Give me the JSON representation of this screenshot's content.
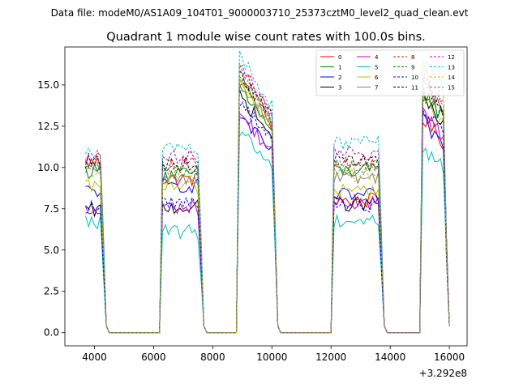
{
  "figure": {
    "suptitle": "Data file: modeM0/AS1A09_104T01_9000003710_25373cztM0_level2_quad_clean.evt",
    "title": "Quadrant 1 module wise count rates with 100.0s bins."
  },
  "chart_data": {
    "type": "line",
    "title": "Quadrant 1 module wise count rates with 100.0s bins.",
    "xlabel": "",
    "ylabel": "",
    "x_offset_label": "+3.292e8",
    "xlim": [
      3000,
      16600
    ],
    "ylim": [
      -0.8,
      17.3
    ],
    "xticks": [
      4000,
      6000,
      8000,
      10000,
      12000,
      14000,
      16000
    ],
    "xtick_labels": [
      "4000",
      "6000",
      "8000",
      "10000",
      "12000",
      "14000",
      "16000"
    ],
    "yticks": [
      0.0,
      2.5,
      5.0,
      7.5,
      10.0,
      12.5,
      15.0
    ],
    "ytick_labels": [
      "0.0",
      "2.5",
      "5.0",
      "7.5",
      "10.0",
      "12.5",
      "15.0"
    ],
    "legend_location": "top-right",
    "legend_columns": 4,
    "bin_seconds": 100,
    "segments": [
      {
        "start": 3700,
        "end": 4300
      },
      {
        "start": 6300,
        "end": 7600
      },
      {
        "start": 8900,
        "end": 10100
      },
      {
        "start": 12100,
        "end": 13700
      },
      {
        "start": 15100,
        "end": 15900
      }
    ],
    "series": [
      {
        "name": "0",
        "color": "#ff0000",
        "dashed": false,
        "levels": [
          10.3,
          9.3,
          13.7,
          8.0,
          12.3
        ]
      },
      {
        "name": "1",
        "color": "#008000",
        "dashed": false,
        "levels": [
          9.8,
          9.6,
          13.3,
          9.8,
          13.8
        ]
      },
      {
        "name": "2",
        "color": "#0000ff",
        "dashed": false,
        "levels": [
          8.6,
          8.9,
          11.8,
          8.3,
          12.1
        ]
      },
      {
        "name": "3",
        "color": "#000000",
        "dashed": false,
        "levels": [
          7.4,
          7.6,
          12.9,
          7.8,
          13.3
        ]
      },
      {
        "name": "4",
        "color": "#bf00bf",
        "dashed": false,
        "levels": [
          7.3,
          7.6,
          11.9,
          7.9,
          12.6
        ]
      },
      {
        "name": "5",
        "color": "#00bfbf",
        "dashed": false,
        "levels": [
          6.7,
          6.1,
          11.0,
          6.8,
          10.6
        ]
      },
      {
        "name": "6",
        "color": "#bfbf00",
        "dashed": false,
        "levels": [
          8.8,
          8.8,
          13.6,
          8.6,
          13.4
        ]
      },
      {
        "name": "7",
        "color": "#808080",
        "dashed": false,
        "levels": [
          9.9,
          9.3,
          13.8,
          9.4,
          14.3
        ]
      },
      {
        "name": "8",
        "color": "#ff0000",
        "dashed": true,
        "levels": [
          10.6,
          10.3,
          14.3,
          10.3,
          14.6
        ]
      },
      {
        "name": "9",
        "color": "#008000",
        "dashed": true,
        "levels": [
          10.1,
          9.8,
          13.9,
          10.1,
          13.9
        ]
      },
      {
        "name": "10",
        "color": "#0000ff",
        "dashed": true,
        "levels": [
          7.6,
          7.9,
          12.6,
          7.7,
          13.0
        ]
      },
      {
        "name": "11",
        "color": "#000000",
        "dashed": true,
        "levels": [
          10.3,
          10.2,
          14.1,
          10.5,
          14.4
        ]
      },
      {
        "name": "12",
        "color": "#bf00bf",
        "dashed": true,
        "levels": [
          10.6,
          10.6,
          14.6,
          10.9,
          14.9
        ]
      },
      {
        "name": "13",
        "color": "#00bfbf",
        "dashed": true,
        "levels": [
          11.1,
          11.1,
          15.0,
          11.5,
          15.6
        ]
      },
      {
        "name": "14",
        "color": "#bfbf00",
        "dashed": true,
        "levels": [
          9.4,
          9.3,
          13.8,
          9.6,
          15.2
        ]
      },
      {
        "name": "15",
        "color": "#808080",
        "dashed": true,
        "levels": [
          10.3,
          10.0,
          14.2,
          10.0,
          14.6
        ]
      }
    ]
  }
}
